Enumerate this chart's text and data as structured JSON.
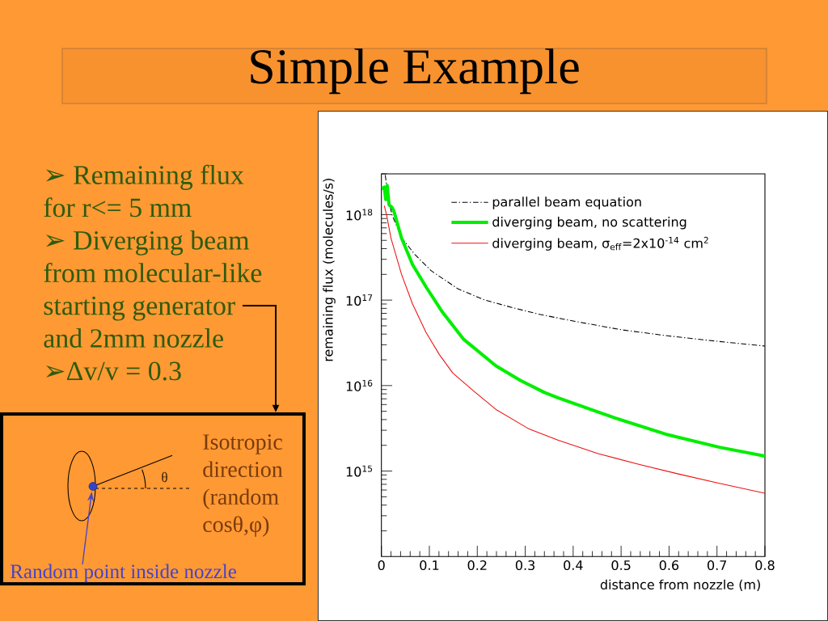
{
  "chart_data": {
    "type": "line",
    "title": "Simple Example",
    "xlabel": "distance from nozzle (m)",
    "ylabel": "remaining flux (molecules/s)",
    "xlim": [
      0,
      0.8
    ],
    "xticks": [
      0,
      0.1,
      0.2,
      0.3,
      0.4,
      0.5,
      0.6,
      0.7,
      0.8
    ],
    "ylim": [
      100000000000000.0,
      3e+18
    ],
    "yticks": [
      {
        "value": 1000000000000000.0,
        "label": "10$^{15}$"
      },
      {
        "value": 1e+16,
        "label": "10$^{16}$"
      },
      {
        "value": 1e+17,
        "label": "10$^{17}$"
      },
      {
        "value": 1e+18,
        "label": "10$^{18}$"
      }
    ],
    "log": "y",
    "legend": "top right",
    "marker": "none",
    "series": [
      {
        "name": "parallel beam equation",
        "color": "#000000",
        "line_style": "dashdot",
        "x": [
          0.008,
          0.014,
          0.022,
          0.042,
          0.07,
          0.104,
          0.16,
          0.216,
          0.272,
          0.33,
          0.4,
          0.5,
          0.6,
          0.7,
          0.8
        ],
        "values": [
          2.9e+18,
          1.6e+18,
          1e+18,
          5.4e+17,
          3.4e+17,
          2.2e+17,
          1.35e+17,
          1e+17,
          8.2e+16,
          6.8e+16,
          5.7e+16,
          4.5e+16,
          3.8e+16,
          3.3e+16,
          2.9e+16
        ]
      },
      {
        "name": "diverging beam, no scattering",
        "color": "#00EE00",
        "line_style": "solid",
        "x": [
          0,
          0.006,
          0.009,
          0.012,
          0.016,
          0.022,
          0.026,
          0.042,
          0.065,
          0.093,
          0.126,
          0.171,
          0.239,
          0.29,
          0.34,
          0.368,
          0.419,
          0.486,
          0.593,
          0.705,
          0.8
        ],
        "values": [
          2e+18,
          2.1e+18,
          1.5e+18,
          2.2e+18,
          1.3e+18,
          1.22e+18,
          1.1e+18,
          5.3e+17,
          2.6e+17,
          1.43e+17,
          7.4e+16,
          3.5e+16,
          1.7e+16,
          1.15e+16,
          8300000000000000.0,
          7200000000000000.0,
          5700000000000000.0,
          4200000000000000.0,
          2700000000000000.0,
          1900000000000000.0,
          1500000000000000.0
        ]
      },
      {
        "name": "diverging beam, σ$_{eff}$=2x10$^{-14}$ cm$^{2}$",
        "color": "#EE1111",
        "line_style": "solid",
        "x": [
          0.006,
          0.011,
          0.02,
          0.042,
          0.065,
          0.093,
          0.121,
          0.149,
          0.194,
          0.239,
          0.306,
          0.368,
          0.452,
          0.537,
          0.621,
          0.705,
          0.8
        ],
        "values": [
          1.27e+18,
          9.8e+17,
          5.3e+17,
          2e+17,
          9e+16,
          4.2e+16,
          2.3e+16,
          1.4e+16,
          8500000000000000.0,
          5250000000000000.0,
          3150000000000000.0,
          2300000000000000.0,
          1600000000000000.0,
          1200000000000000.0,
          920000000000000.0,
          720000000000000.0,
          550000000000000.0
        ]
      }
    ],
    "annotations": [
      "➢ Remaining flux for r<= 5 mm",
      "➢ Diverging beam from molecular-like starting generator and 2mm nozzle",
      "➢Δv/v = 0.3",
      "θ",
      "Isotropic direction (random cosθ,φ)",
      "Random point inside nozzle"
    ]
  }
}
